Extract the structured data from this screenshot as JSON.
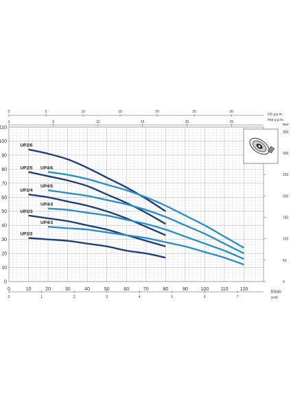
{
  "chart_data": {
    "type": "line",
    "title": "",
    "xlabel": "l/min",
    "ylabel": "",
    "xlim": [
      0,
      130
    ],
    "ylim": [
      0,
      110
    ],
    "x_ticks": [
      0,
      10,
      20,
      30,
      40,
      50,
      60,
      70,
      80,
      90,
      100,
      110,
      120
    ],
    "y_ticks": [
      0,
      10,
      20,
      30,
      40,
      50,
      60,
      70,
      80,
      90,
      100,
      110
    ],
    "secondary_axes": {
      "usgpm": {
        "label": "US g.p.m.",
        "ticks": [
          "0",
          "5",
          "10",
          "15",
          "20",
          "25",
          "30"
        ]
      },
      "impgpm": {
        "label": "Imp g.p.m.",
        "ticks": [
          "0",
          "5",
          "10",
          "15",
          "20",
          "25"
        ]
      },
      "m3h": {
        "label": "m³/h",
        "ticks": [
          "0",
          "1",
          "2",
          "3",
          "4",
          "5",
          "6",
          "7"
        ]
      },
      "feet": {
        "label": "feet",
        "ticks": [
          "0",
          "50",
          "100",
          "150",
          "200",
          "250",
          "300",
          "350"
        ]
      }
    },
    "grid": true,
    "series": [
      {
        "name": "UP2/6",
        "color": "#1e3f7a",
        "x": [
          10,
          20,
          30,
          40,
          50,
          60,
          70,
          80
        ],
        "y": [
          94,
          91,
          87,
          81,
          74,
          67,
          59,
          50
        ]
      },
      {
        "name": "UP2/5",
        "color": "#1e3f7a",
        "x": [
          10,
          20,
          30,
          40,
          50,
          60,
          70,
          80
        ],
        "y": [
          78,
          75,
          72,
          68,
          62,
          56,
          49,
          41
        ]
      },
      {
        "name": "UP2/4",
        "color": "#1e3f7a",
        "x": [
          10,
          20,
          30,
          40,
          50,
          60,
          70,
          80
        ],
        "y": [
          62,
          60,
          57,
          54,
          50,
          45,
          39,
          33
        ]
      },
      {
        "name": "UP2/3",
        "color": "#1e3f7a",
        "x": [
          10,
          20,
          30,
          40,
          50,
          60,
          70,
          80
        ],
        "y": [
          47,
          45,
          43,
          40,
          37,
          33,
          29,
          25
        ]
      },
      {
        "name": "UP2/2",
        "color": "#1e3f7a",
        "x": [
          10,
          20,
          30,
          40,
          50,
          60,
          70,
          80
        ],
        "y": [
          31,
          30,
          29,
          27,
          25,
          22,
          20,
          17
        ]
      },
      {
        "name": "UP4/6",
        "color": "#2a8fc9",
        "x": [
          20,
          30,
          40,
          50,
          60,
          70,
          80,
          90,
          100,
          110,
          120
        ],
        "y": [
          78,
          76,
          73,
          69,
          65,
          60,
          54,
          47,
          40,
          32,
          24
        ]
      },
      {
        "name": "UP4/5",
        "color": "#2a8fc9",
        "x": [
          20,
          30,
          40,
          50,
          60,
          70,
          80,
          90,
          100,
          110,
          120
        ],
        "y": [
          65,
          63,
          61,
          58,
          55,
          51,
          46,
          40,
          34,
          27,
          20
        ]
      },
      {
        "name": "UP4/4",
        "color": "#2a8fc9",
        "x": [
          20,
          30,
          40,
          50,
          60,
          70,
          80,
          90,
          100,
          110,
          120
        ],
        "y": [
          52,
          51,
          49,
          47,
          44,
          41,
          37,
          32,
          27,
          22,
          16
        ]
      },
      {
        "name": "UP4/3",
        "color": "#2a8fc9",
        "x": [
          20,
          30,
          40,
          50,
          60,
          70,
          80,
          90,
          100,
          110,
          120
        ],
        "y": [
          39,
          38,
          37,
          35,
          33,
          31,
          28,
          25,
          21,
          17,
          12
        ]
      }
    ]
  }
}
